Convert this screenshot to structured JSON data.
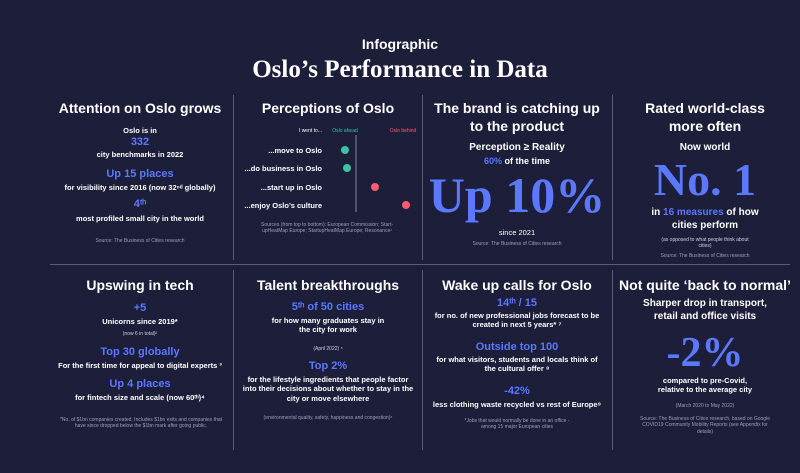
{
  "header": {
    "kicker": "Infographic",
    "title": "Oslo’s Performance in Data"
  },
  "panels": [
    {
      "title": "Attention on Oslo grows",
      "items": [
        "Oslo is in",
        "332",
        "city benchmarks in 2022",
        "Up 15 places",
        "for visibility since 2016 (now 32ⁿᵈ globally)",
        "4ᵗʰ",
        "most profiled small city in the world"
      ],
      "source": "Source: The Business of Cities research"
    },
    {
      "title": "Perceptions of Oslo",
      "legend": {
        "heading": "I went to...",
        "ahead": "Oslo ahead",
        "behind": "Oslo behind"
      },
      "rows": [
        "...move to Oslo",
        "...do business in Oslo",
        "...start up in Oslo",
        "...enjoy Oslo’s culture"
      ],
      "source": "Sources (from top to bottom): European Commission; Start-upHeatMap Europe; StartupHeatMap Europe; Resonance¹"
    },
    {
      "title": "The brand is catching up to the product",
      "items": [
        "Perception ≥ Reality",
        "60%",
        "of the time",
        "Up 10%",
        "since 2021"
      ],
      "source": "Source: The Business of Cities research"
    },
    {
      "title": "Rated world-class more often",
      "items": [
        "Now world",
        "No. 1",
        "in",
        "16 measures",
        "of how cities perform",
        "(as opposed to what people think about cities)"
      ],
      "source": "Source: The Business of Cities research"
    },
    {
      "title": "Upswing in tech",
      "items": [
        "+5",
        "Unicorns since 2019*",
        "(now 6 in total)²",
        "Top 30 globally",
        "For the first time for appeal to digital experts ³",
        "Up 4 places",
        "for fintech size and scale (now 60ᵗʰ)⁴"
      ],
      "source": "*No. of $1bn companies created. Includes $1bn exits and companies that have since dropped below the $1bn mark after going public."
    },
    {
      "title": "Talent breakthroughs",
      "items": [
        "5ᵗʰ of 50 cities",
        "for how many graduates stay in the city for work",
        "(April 2022) ⁵",
        "Top 2%",
        "for the lifestyle ingredients that people factor into their decisions about whether to stay in the city or move elsewhere"
      ],
      "source": "(environmental quality, safety, happiness and congestion)⁶"
    },
    {
      "title": "Wake up calls for Oslo",
      "items": [
        "14ᵗʰ / 15",
        "for no. of new professional jobs forecast to be created  in next 5 years* ⁷",
        "Outside top 100",
        "for what visitors, students and locals think of the cultural offer ⁸",
        "-42%",
        "less clothing waste recycled vs rest of Europe⁹"
      ],
      "source": "*Jobs that would normally be done in an office - among 15 major European cities"
    },
    {
      "title": "Not quite ‘back to normal’",
      "items": [
        "Sharper drop in transport, retail and office visits",
        "-2%",
        "compared to pre-Covid, relative to the average city",
        "(March 2020 to May 2022)"
      ],
      "source": "Source: The Business of Cities research, based on Google COVID19 Community Mobility Reports (see Appendix for details)"
    }
  ]
}
